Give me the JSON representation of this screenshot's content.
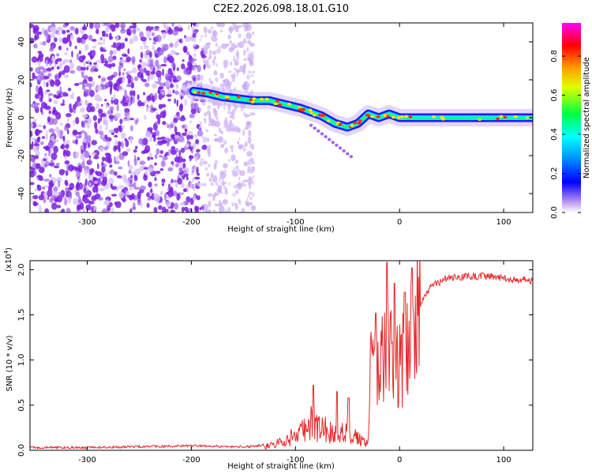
{
  "figure_title": "C2E2.2026.098.18.01.G10",
  "chart_data": [
    {
      "type": "heatmap",
      "xlabel": "Height of straight line (km)",
      "ylabel": "Frequency (Hz)",
      "xlim": [
        -355,
        128
      ],
      "ylim": [
        -50,
        50
      ],
      "x_ticks": [
        -300,
        -200,
        -100,
        0,
        100
      ],
      "x_tick_labels": [
        "-300",
        "-200",
        "-100",
        "0",
        "100"
      ],
      "y_ticks": [
        -40,
        -20,
        0,
        20,
        40
      ],
      "y_tick_labels": [
        "-40",
        "-20",
        "0",
        "20",
        "40"
      ],
      "colorbar": {
        "label": "Normalized spectral amplitude",
        "range": [
          0,
          0.97
        ],
        "ticks": [
          0,
          0.2,
          0.4,
          0.6,
          0.8
        ],
        "tick_labels": [
          "0.0",
          "0.2",
          "0.4",
          "0.6",
          "0.8"
        ],
        "colormap": [
          "#ffffff",
          "#7b1fe0",
          "#0000ff",
          "#00e0ff",
          "#00ff40",
          "#ffff00",
          "#ff2000",
          "#ff00ff"
        ]
      },
      "noise_region_x": [
        -355,
        -140
      ],
      "ridge": [
        {
          "x": -198,
          "y": 14
        },
        {
          "x": -185,
          "y": 13
        },
        {
          "x": -170,
          "y": 11
        },
        {
          "x": -155,
          "y": 10
        },
        {
          "x": -140,
          "y": 9
        },
        {
          "x": -125,
          "y": 9
        },
        {
          "x": -110,
          "y": 7
        },
        {
          "x": -95,
          "y": 5
        },
        {
          "x": -85,
          "y": 3
        },
        {
          "x": -75,
          "y": 1
        },
        {
          "x": -62,
          "y": -3
        },
        {
          "x": -50,
          "y": -5
        },
        {
          "x": -40,
          "y": -3
        },
        {
          "x": -30,
          "y": 2
        },
        {
          "x": -20,
          "y": 0
        },
        {
          "x": -10,
          "y": 2
        },
        {
          "x": 0,
          "y": 0
        },
        {
          "x": 20,
          "y": 0
        },
        {
          "x": 60,
          "y": 0
        },
        {
          "x": 100,
          "y": 0
        },
        {
          "x": 128,
          "y": 0
        }
      ]
    },
    {
      "type": "line",
      "xlabel": "Height of straight line (km)",
      "ylabel": "SNR (10 * v/v)",
      "y_multiplier_label": "(x10",
      "y_multiplier_exponent": "4",
      "y_multiplier_close": ")",
      "xlim": [
        -355,
        128
      ],
      "ylim": [
        0,
        2.1
      ],
      "x_ticks": [
        -300,
        -200,
        -100,
        0,
        100
      ],
      "x_tick_labels": [
        "-300",
        "-200",
        "-100",
        "0",
        "100"
      ],
      "y_ticks": [
        0,
        0.5,
        1.0,
        1.5,
        2.0
      ],
      "y_tick_labels": [
        "0.0",
        "0.5",
        "1.0",
        "1.5",
        "2.0"
      ],
      "series": [
        {
          "color": "#e8282a",
          "envelope": [
            [
              -355,
              0.03
            ],
            [
              -300,
              0.03
            ],
            [
              -250,
              0.04
            ],
            [
              -200,
              0.05
            ],
            [
              -160,
              0.04
            ],
            [
              -140,
              0.04
            ],
            [
              -125,
              0.08
            ],
            [
              -110,
              0.15
            ],
            [
              -95,
              0.32
            ],
            [
              -85,
              0.48
            ],
            [
              -75,
              0.4
            ],
            [
              -65,
              0.3
            ],
            [
              -55,
              0.33
            ],
            [
              -45,
              0.25
            ],
            [
              -35,
              0.15
            ],
            [
              -30,
              0.1
            ],
            [
              -28,
              0.9
            ],
            [
              -22,
              1.0
            ],
            [
              -15,
              1.1
            ],
            [
              -10,
              1.05
            ],
            [
              -5,
              0.95
            ],
            [
              0,
              0.95
            ],
            [
              5,
              1.0
            ],
            [
              12,
              1.3
            ],
            [
              20,
              1.6
            ],
            [
              30,
              1.82
            ],
            [
              45,
              1.9
            ],
            [
              60,
              1.92
            ],
            [
              80,
              1.93
            ],
            [
              100,
              1.91
            ],
            [
              128,
              1.88
            ]
          ],
          "peaks": [
            [
              -83,
              0.72
            ],
            [
              -60,
              0.65
            ],
            [
              -49,
              0.58
            ],
            [
              -12,
              2.08
            ],
            [
              -5,
              1.85
            ],
            [
              5,
              1.75
            ],
            [
              12,
              2.02
            ]
          ]
        }
      ]
    }
  ]
}
